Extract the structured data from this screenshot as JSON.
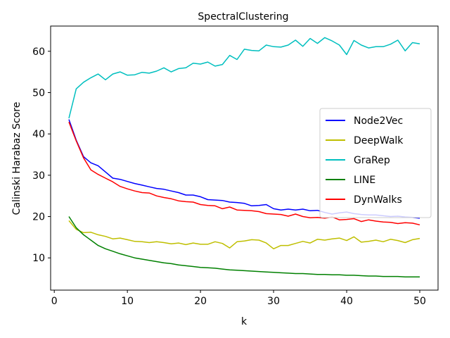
{
  "chart_data": {
    "type": "line",
    "title": "SpectralClustering",
    "xlabel": "k",
    "ylabel": "Calinski Harabaz Score",
    "xlim": [
      -0.5,
      52.5
    ],
    "ylim": [
      2.2,
      66.1
    ],
    "xticks": [
      0,
      10,
      20,
      30,
      40,
      50
    ],
    "yticks": [
      10,
      20,
      30,
      40,
      50,
      60
    ],
    "grid": false,
    "legend_position": "center-right",
    "x": [
      2,
      3,
      4,
      5,
      6,
      7,
      8,
      9,
      10,
      11,
      12,
      13,
      14,
      15,
      16,
      17,
      18,
      19,
      20,
      21,
      22,
      23,
      24,
      25,
      26,
      27,
      28,
      29,
      30,
      31,
      32,
      33,
      34,
      35,
      36,
      37,
      38,
      39,
      40,
      41,
      42,
      43,
      44,
      45,
      46,
      47,
      48,
      49,
      50
    ],
    "series": [
      {
        "name": "Node2Vec",
        "color": "#0000ff",
        "values": [
          43.5,
          38.5,
          34.5,
          33.0,
          32.3,
          30.8,
          29.3,
          29.0,
          28.5,
          28.0,
          27.6,
          27.2,
          26.8,
          26.6,
          26.2,
          25.8,
          25.2,
          25.2,
          24.8,
          24.1,
          24.0,
          23.9,
          23.5,
          23.4,
          23.2,
          22.6,
          22.7,
          22.9,
          21.9,
          21.6,
          21.8,
          21.6,
          21.8,
          21.4,
          21.5,
          21.0,
          20.6,
          20.9,
          21.1,
          20.7,
          20.5,
          20.4,
          20.4,
          20.2,
          20.0,
          20.1,
          19.9,
          19.8,
          19.6
        ]
      },
      {
        "name": "DeepWalk",
        "color": "#bfbf00",
        "values": [
          19.0,
          16.9,
          16.1,
          16.2,
          15.6,
          15.2,
          14.6,
          14.8,
          14.4,
          14.0,
          13.9,
          13.7,
          13.9,
          13.7,
          13.4,
          13.6,
          13.2,
          13.6,
          13.3,
          13.3,
          13.9,
          13.5,
          12.4,
          13.9,
          14.1,
          14.4,
          14.3,
          13.6,
          12.2,
          13.0,
          13.0,
          13.5,
          14.0,
          13.6,
          14.5,
          14.3,
          14.6,
          14.8,
          14.2,
          15.1,
          13.8,
          14.0,
          14.3,
          13.9,
          14.5,
          14.2,
          13.7,
          14.4,
          14.7
        ]
      },
      {
        "name": "GraRep",
        "color": "#00bfbf",
        "values": [
          43.8,
          50.9,
          52.5,
          53.6,
          54.5,
          53.1,
          54.5,
          55.0,
          54.2,
          54.3,
          54.9,
          54.7,
          55.2,
          56.0,
          55.0,
          55.8,
          56.0,
          57.1,
          56.9,
          57.4,
          56.4,
          56.8,
          59.0,
          58.0,
          60.5,
          60.2,
          60.1,
          61.5,
          61.1,
          61.0,
          61.5,
          62.7,
          61.2,
          63.1,
          61.9,
          63.3,
          62.5,
          61.5,
          59.2,
          62.6,
          61.5,
          60.8,
          61.1,
          61.1,
          61.7,
          62.7,
          60.1,
          62.1,
          61.8
        ]
      },
      {
        "name": "LINE",
        "color": "#008000",
        "values": [
          20.0,
          17.3,
          15.6,
          14.3,
          13.0,
          12.2,
          11.6,
          11.0,
          10.5,
          10.0,
          9.7,
          9.4,
          9.1,
          8.8,
          8.6,
          8.3,
          8.1,
          7.9,
          7.7,
          7.6,
          7.5,
          7.3,
          7.1,
          7.0,
          6.9,
          6.8,
          6.7,
          6.6,
          6.5,
          6.4,
          6.3,
          6.2,
          6.2,
          6.1,
          6.0,
          6.0,
          5.9,
          5.9,
          5.8,
          5.8,
          5.7,
          5.6,
          5.6,
          5.5,
          5.5,
          5.5,
          5.4,
          5.4,
          5.4
        ]
      },
      {
        "name": "DynWalks",
        "color": "#ff0000",
        "values": [
          42.9,
          38.3,
          34.2,
          31.3,
          30.2,
          29.3,
          28.4,
          27.3,
          26.7,
          26.2,
          25.8,
          25.7,
          25.0,
          24.6,
          24.3,
          23.8,
          23.6,
          23.5,
          22.9,
          22.7,
          22.6,
          21.9,
          22.3,
          21.6,
          21.5,
          21.4,
          21.2,
          20.7,
          20.6,
          20.5,
          20.1,
          20.6,
          20.0,
          19.7,
          19.8,
          19.6,
          19.9,
          19.2,
          19.3,
          19.5,
          18.8,
          19.2,
          18.9,
          18.7,
          18.6,
          18.3,
          18.5,
          18.4,
          18.0
        ]
      }
    ]
  }
}
